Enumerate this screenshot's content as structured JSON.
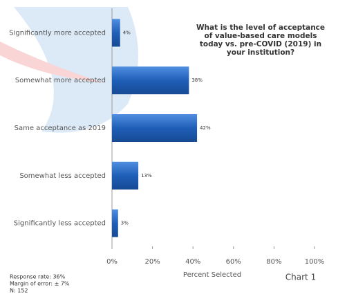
{
  "chart_data": {
    "type": "barh",
    "title": [
      "What is the level of acceptance",
      "of value-based care models",
      "today vs. pre-COVID (2019) in",
      "your institution?"
    ],
    "categories": [
      "Significantly more accepted",
      "Somewhat more accepted",
      "Same acceptance as 2019",
      "Somewhat less accepted",
      "Significantly less accepted"
    ],
    "values": [
      4,
      38,
      42,
      13,
      3
    ],
    "value_labels": [
      "4%",
      "38%",
      "42%",
      "13%",
      "3%"
    ],
    "color": "#1f5fb8",
    "xlim": [
      0,
      100
    ],
    "xticks": [
      {
        "value": 0,
        "label": "0%"
      },
      {
        "value": 20,
        "label": "20%"
      },
      {
        "value": 40,
        "label": "40%"
      },
      {
        "value": 60,
        "label": "60%"
      },
      {
        "value": 80,
        "label": "80%"
      },
      {
        "value": 100,
        "label": "100%"
      }
    ],
    "xlabel": "Percent Selected",
    "notes": [
      "Response rate: 36%",
      "Margin of error: ± 7%",
      "N: 152"
    ],
    "chart_label": "Chart 1"
  }
}
